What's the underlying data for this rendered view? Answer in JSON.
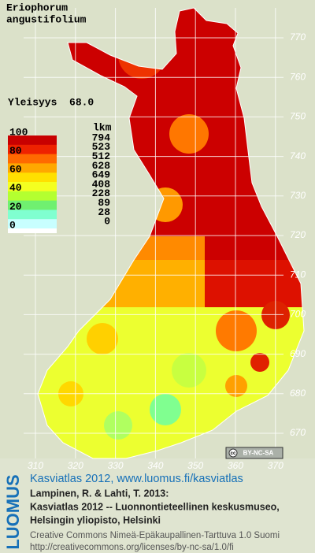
{
  "title_lines": [
    "Eriophorum",
    "angustifolium"
  ],
  "frequency": "Yleisyys  68.0",
  "legend": {
    "scale_labels": [
      100,
      80,
      60,
      40,
      20,
      0
    ],
    "count_header": "lkm",
    "counts": [
      794,
      523,
      512,
      628,
      649,
      408,
      228,
      89,
      28,
      0
    ],
    "colors": [
      "#c80000",
      "#ee2200",
      "#ff6a00",
      "#ffa800",
      "#ffe000",
      "#f4ff20",
      "#b4ff30",
      "#70f070",
      "#80ffd0",
      "#c8ffff",
      "#ffffff"
    ]
  },
  "northing_ticks": [
    770,
    760,
    750,
    740,
    730,
    720,
    710,
    700,
    690,
    680,
    670
  ],
  "easting_ticks": [
    310,
    320,
    330,
    340,
    350,
    360,
    370
  ],
  "license_badge": "BY-NC-SA",
  "brand": "LUOMUS",
  "footer": {
    "link": "Kasviatlas 2012, www.luomus.fi/kasviatlas",
    "citation": [
      "Lampinen, R. & Lahti, T. 2013:",
      "Kasviatlas 2012 -- Luonnontieteellinen keskusmuseo,",
      "Helsingin yliopisto, Helsinki"
    ],
    "license": "Creative Commons Nimeä-Epäkaupallinen-Tarttuva 1.0 Suomi",
    "license_url": "http://creativecommons.org/licenses/by-nc-sa/1.0/fi"
  }
}
